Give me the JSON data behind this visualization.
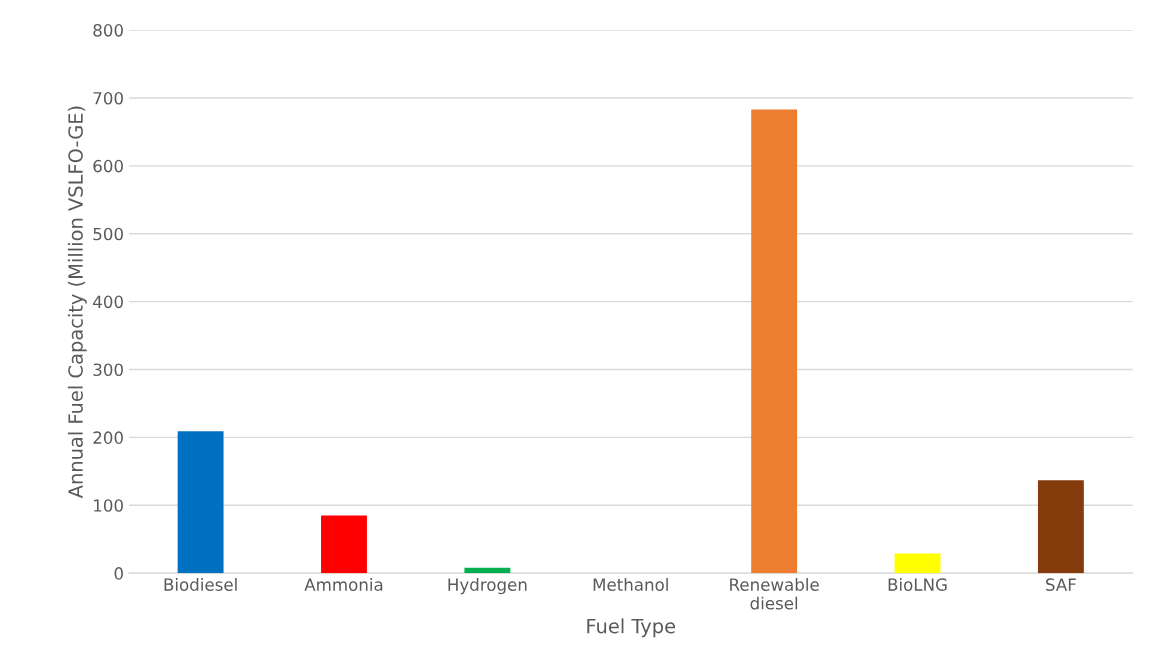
{
  "chart_data": {
    "type": "bar",
    "xlabel": "Fuel Type",
    "ylabel": "Annual Fuel Capacity (Million VSLFO-GE)",
    "categories": [
      "Biodiesel",
      "Ammonia",
      "Hydrogen",
      "Methanol",
      "Renewable\ndiesel",
      "BioLNG",
      "SAF"
    ],
    "values": [
      209,
      85,
      8,
      0,
      683,
      29,
      137
    ],
    "colors": [
      "#0070c0",
      "#ff0000",
      "#00b050",
      "#7030a0",
      "#ed7d31",
      "#ffff00",
      "#843c0c"
    ],
    "ylim": [
      0,
      800
    ],
    "yticks": [
      0,
      100,
      200,
      300,
      400,
      500,
      600,
      700,
      800
    ],
    "grid": "y",
    "legend": false
  }
}
